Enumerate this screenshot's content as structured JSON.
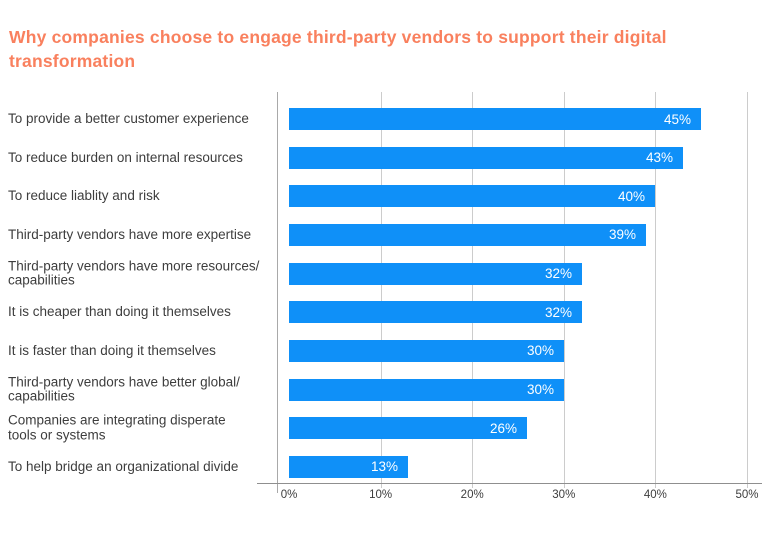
{
  "title": "Why companies choose to engage third-party vendors to support their digital transformation",
  "colors": {
    "bar": "#0F90F8",
    "title_text": "#F9805E",
    "label_text": "#3D3D3D",
    "gridline": "#CCCCCC",
    "axis_line": "#8F8F8F",
    "value_text": "#FFFFFF",
    "background": "#FFFFFF"
  },
  "chart_data": {
    "type": "bar",
    "orientation": "horizontal",
    "title": "Why companies choose to engage third-party vendors to support their digital transformation",
    "categories": [
      "To provide a better customer experience",
      "To reduce burden on internal resources",
      "To reduce liablity and risk",
      "Third-party vendors have more expertise",
      "Third-party vendors have more resources/\ncapabilities",
      "It is cheaper than doing it themselves",
      "It is faster than doing it themselves",
      "Third-party vendors have better global/\ncapabilities",
      "Companies are integrating disperate\ntools or systems",
      "To help bridge an organizational divide"
    ],
    "values": [
      45,
      43,
      40,
      39,
      32,
      32,
      30,
      30,
      26,
      13
    ],
    "value_labels": [
      "45%",
      "43%",
      "40%",
      "39%",
      "32%",
      "32%",
      "30%",
      "30%",
      "26%",
      "13%"
    ],
    "x_ticks": [
      "0%",
      "10%",
      "20%",
      "30%",
      "40%",
      "50%"
    ],
    "xlim": [
      0,
      50
    ],
    "xlabel": "",
    "ylabel": "",
    "grid": "vertical",
    "legend": "none",
    "value_label_position": "inside-end"
  }
}
